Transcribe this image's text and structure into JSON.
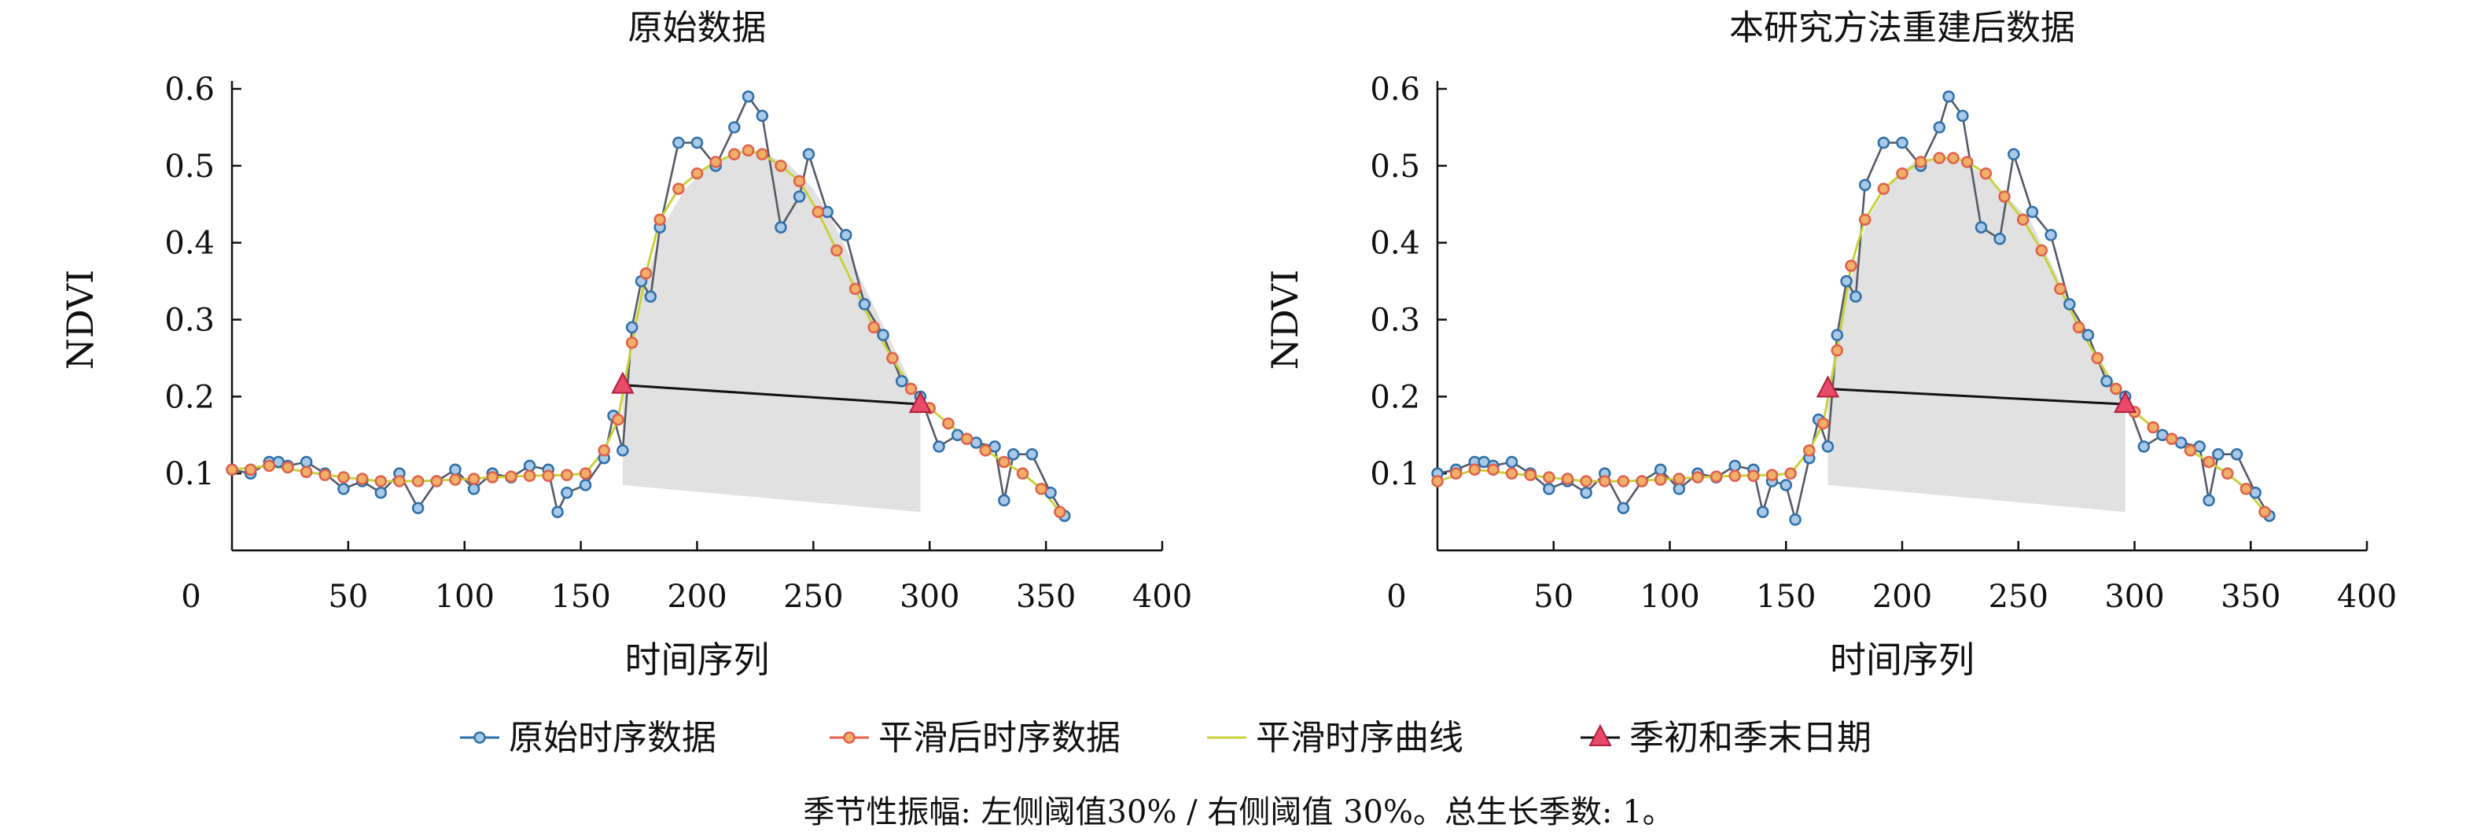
{
  "chart_data": [
    {
      "type": "line",
      "title": "原始数据",
      "xlabel": "时间序列",
      "ylabel": "NDVI",
      "xlim": [
        0,
        400
      ],
      "ylim": [
        0,
        0.6
      ],
      "xticks": [
        0,
        50,
        100,
        150,
        200,
        250,
        300,
        350,
        400
      ],
      "yticks": [
        0.1,
        0.2,
        0.3,
        0.4,
        0.5,
        0.6
      ],
      "shaded_region": {
        "upper": [
          [
            168,
            0.215
          ],
          [
            175,
            0.32
          ],
          [
            185,
            0.42
          ],
          [
            195,
            0.47
          ],
          [
            205,
            0.5
          ],
          [
            215,
            0.515
          ],
          [
            222,
            0.52
          ],
          [
            230,
            0.515
          ],
          [
            240,
            0.5
          ],
          [
            250,
            0.47
          ],
          [
            258,
            0.43
          ],
          [
            266,
            0.38
          ],
          [
            274,
            0.33
          ],
          [
            282,
            0.28
          ],
          [
            290,
            0.23
          ],
          [
            296,
            0.19
          ]
        ],
        "lower": [
          [
            168,
            0.085
          ],
          [
            296,
            0.05
          ]
        ]
      },
      "season_line": [
        [
          168,
          0.215
        ],
        [
          296,
          0.19
        ]
      ],
      "series": [
        {
          "name": "原始时序数据",
          "color": "#2e6fa8",
          "style": "line-marker",
          "x": [
            0,
            8,
            16,
            20,
            24,
            32,
            40,
            48,
            56,
            64,
            72,
            80,
            88,
            96,
            104,
            112,
            120,
            128,
            136,
            140,
            144,
            152,
            160,
            164,
            168,
            172,
            176,
            180,
            184,
            192,
            200,
            208,
            216,
            222,
            228,
            236,
            244,
            248,
            256,
            264,
            272,
            280,
            288,
            296,
            304,
            312,
            320,
            328,
            332,
            336,
            344,
            352,
            358
          ],
          "y": [
            0.105,
            0.1,
            0.115,
            0.115,
            0.11,
            0.115,
            0.1,
            0.08,
            0.09,
            0.075,
            0.1,
            0.055,
            0.09,
            0.105,
            0.08,
            0.1,
            0.095,
            0.11,
            0.105,
            0.05,
            0.075,
            0.085,
            0.12,
            0.175,
            0.13,
            0.29,
            0.35,
            0.33,
            0.42,
            0.53,
            0.53,
            0.5,
            0.55,
            0.59,
            0.565,
            0.42,
            0.46,
            0.515,
            0.44,
            0.41,
            0.32,
            0.28,
            0.22,
            0.2,
            0.135,
            0.15,
            0.14,
            0.135,
            0.065,
            0.125,
            0.125,
            0.075,
            0.045
          ]
        },
        {
          "name": "平滑后时序数据",
          "color": "#e0604a",
          "style": "marker",
          "x": [
            0,
            8,
            16,
            24,
            32,
            40,
            48,
            56,
            64,
            72,
            80,
            88,
            96,
            104,
            112,
            120,
            128,
            136,
            144,
            152,
            160,
            166,
            172,
            178,
            184,
            192,
            200,
            208,
            216,
            222,
            228,
            236,
            244,
            252,
            260,
            268,
            276,
            284,
            292,
            300,
            308,
            316,
            324,
            332,
            340,
            348,
            356
          ],
          "y": [
            0.105,
            0.105,
            0.11,
            0.108,
            0.102,
            0.098,
            0.095,
            0.093,
            0.09,
            0.09,
            0.09,
            0.09,
            0.092,
            0.093,
            0.095,
            0.096,
            0.097,
            0.097,
            0.098,
            0.1,
            0.13,
            0.17,
            0.27,
            0.36,
            0.43,
            0.47,
            0.49,
            0.505,
            0.515,
            0.52,
            0.515,
            0.5,
            0.48,
            0.44,
            0.39,
            0.34,
            0.29,
            0.25,
            0.21,
            0.185,
            0.165,
            0.145,
            0.13,
            0.115,
            0.1,
            0.08,
            0.05
          ]
        },
        {
          "name": "平滑时序曲线",
          "color": "#c9d23a",
          "style": "line",
          "x": [
            0,
            16,
            32,
            48,
            64,
            80,
            96,
            112,
            128,
            144,
            152,
            160,
            166,
            172,
            178,
            184,
            192,
            200,
            208,
            216,
            222,
            228,
            236,
            244,
            252,
            260,
            268,
            276,
            284,
            292,
            300,
            308,
            316,
            324,
            332,
            340,
            348,
            356
          ],
          "y": [
            0.105,
            0.11,
            0.102,
            0.095,
            0.09,
            0.09,
            0.092,
            0.095,
            0.097,
            0.098,
            0.1,
            0.13,
            0.17,
            0.27,
            0.36,
            0.43,
            0.47,
            0.49,
            0.505,
            0.515,
            0.52,
            0.515,
            0.5,
            0.48,
            0.44,
            0.39,
            0.34,
            0.29,
            0.25,
            0.21,
            0.185,
            0.165,
            0.145,
            0.13,
            0.115,
            0.1,
            0.08,
            0.05
          ]
        },
        {
          "name": "季初和季末日期",
          "color": "#e94a6a",
          "style": "triangle",
          "x": [
            168,
            296
          ],
          "y": [
            0.215,
            0.19
          ]
        }
      ]
    },
    {
      "type": "line",
      "title": "本研究方法重建后数据",
      "xlabel": "时间序列",
      "ylabel": "NDVI",
      "xlim": [
        0,
        400
      ],
      "ylim": [
        0,
        0.6
      ],
      "xticks": [
        0,
        50,
        100,
        150,
        200,
        250,
        300,
        350,
        400
      ],
      "yticks": [
        0.1,
        0.2,
        0.3,
        0.4,
        0.5,
        0.6
      ],
      "shaded_region": {
        "upper": [
          [
            168,
            0.21
          ],
          [
            175,
            0.32
          ],
          [
            185,
            0.43
          ],
          [
            195,
            0.48
          ],
          [
            205,
            0.505
          ],
          [
            215,
            0.51
          ],
          [
            225,
            0.505
          ],
          [
            235,
            0.49
          ],
          [
            245,
            0.46
          ],
          [
            255,
            0.43
          ],
          [
            263,
            0.38
          ],
          [
            271,
            0.33
          ],
          [
            279,
            0.28
          ],
          [
            287,
            0.23
          ],
          [
            296,
            0.19
          ]
        ],
        "lower": [
          [
            168,
            0.085
          ],
          [
            296,
            0.05
          ]
        ]
      },
      "season_line": [
        [
          168,
          0.21
        ],
        [
          296,
          0.19
        ]
      ],
      "series": [
        {
          "name": "原始时序数据",
          "color": "#2e6fa8",
          "style": "line-marker",
          "x": [
            0,
            8,
            16,
            20,
            24,
            32,
            40,
            48,
            56,
            64,
            72,
            80,
            88,
            96,
            104,
            112,
            120,
            128,
            136,
            140,
            144,
            150,
            154,
            160,
            164,
            168,
            172,
            176,
            180,
            184,
            192,
            200,
            208,
            216,
            220,
            226,
            234,
            242,
            248,
            256,
            264,
            272,
            280,
            288,
            296,
            304,
            312,
            320,
            328,
            332,
            336,
            344,
            352,
            358
          ],
          "y": [
            0.1,
            0.105,
            0.115,
            0.115,
            0.11,
            0.115,
            0.1,
            0.08,
            0.09,
            0.075,
            0.1,
            0.055,
            0.09,
            0.105,
            0.08,
            0.1,
            0.095,
            0.11,
            0.105,
            0.05,
            0.09,
            0.085,
            0.04,
            0.12,
            0.17,
            0.135,
            0.28,
            0.35,
            0.33,
            0.475,
            0.53,
            0.53,
            0.5,
            0.55,
            0.59,
            0.565,
            0.42,
            0.405,
            0.515,
            0.44,
            0.41,
            0.32,
            0.28,
            0.22,
            0.2,
            0.135,
            0.15,
            0.14,
            0.135,
            0.065,
            0.125,
            0.125,
            0.075,
            0.045
          ]
        },
        {
          "name": "平滑后时序数据",
          "color": "#e0604a",
          "style": "marker",
          "x": [
            0,
            8,
            16,
            24,
            32,
            40,
            48,
            56,
            64,
            72,
            80,
            88,
            96,
            104,
            112,
            120,
            128,
            136,
            144,
            152,
            160,
            166,
            172,
            178,
            184,
            192,
            200,
            208,
            216,
            222,
            228,
            236,
            244,
            252,
            260,
            268,
            276,
            284,
            292,
            300,
            308,
            316,
            324,
            332,
            340,
            348,
            356
          ],
          "y": [
            0.09,
            0.1,
            0.105,
            0.105,
            0.1,
            0.098,
            0.095,
            0.093,
            0.09,
            0.09,
            0.09,
            0.09,
            0.092,
            0.093,
            0.095,
            0.096,
            0.097,
            0.097,
            0.098,
            0.1,
            0.13,
            0.165,
            0.26,
            0.37,
            0.43,
            0.47,
            0.49,
            0.505,
            0.51,
            0.51,
            0.505,
            0.49,
            0.46,
            0.43,
            0.39,
            0.34,
            0.29,
            0.25,
            0.21,
            0.18,
            0.16,
            0.145,
            0.13,
            0.115,
            0.1,
            0.08,
            0.05
          ]
        },
        {
          "name": "平滑时序曲线",
          "color": "#c9d23a",
          "style": "line",
          "x": [
            0,
            16,
            32,
            48,
            64,
            80,
            96,
            112,
            128,
            144,
            152,
            160,
            166,
            172,
            178,
            184,
            192,
            200,
            208,
            216,
            222,
            228,
            236,
            244,
            252,
            260,
            268,
            276,
            284,
            292,
            300,
            308,
            316,
            324,
            332,
            340,
            348,
            356
          ],
          "y": [
            0.09,
            0.105,
            0.1,
            0.095,
            0.09,
            0.09,
            0.092,
            0.095,
            0.097,
            0.098,
            0.1,
            0.13,
            0.165,
            0.26,
            0.37,
            0.43,
            0.47,
            0.49,
            0.505,
            0.51,
            0.51,
            0.505,
            0.49,
            0.46,
            0.43,
            0.39,
            0.34,
            0.29,
            0.25,
            0.21,
            0.18,
            0.16,
            0.145,
            0.13,
            0.115,
            0.1,
            0.08,
            0.05
          ]
        },
        {
          "name": "季初和季末日期",
          "color": "#e94a6a",
          "style": "triangle",
          "x": [
            168,
            296
          ],
          "y": [
            0.21,
            0.19
          ]
        }
      ]
    }
  ],
  "legend": {
    "items": [
      {
        "label": "原始时序数据",
        "color": "#2e6fa8",
        "style": "line-marker"
      },
      {
        "label": "平滑后时序数据",
        "color": "#e0604a",
        "style": "line-marker"
      },
      {
        "label": "平滑时序曲线",
        "color": "#c9d23a",
        "style": "line"
      },
      {
        "label": "季初和季末日期",
        "color": "#e94a6a",
        "style": "triangle"
      }
    ]
  },
  "footnote": "季节性振幅: 左侧阈值30% / 右侧阈值 30%。总生长季数: 1。"
}
